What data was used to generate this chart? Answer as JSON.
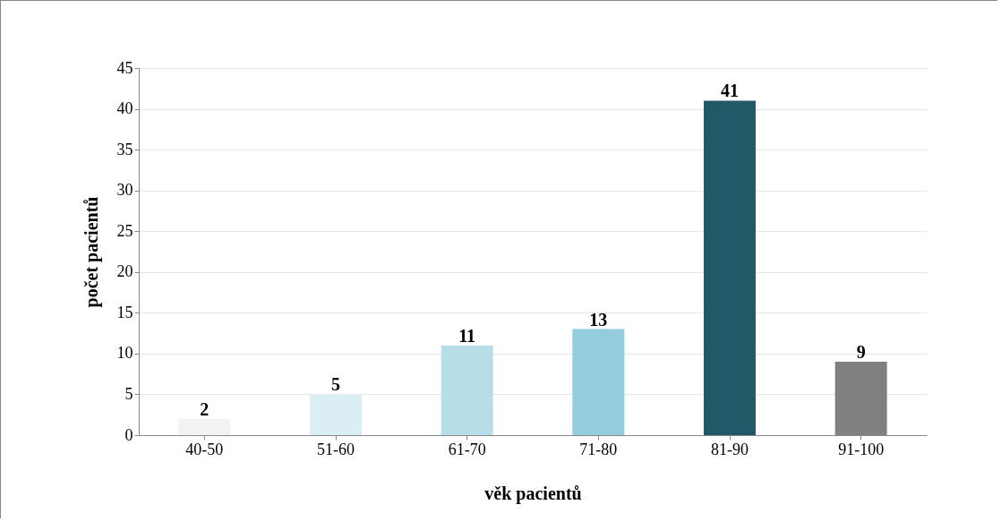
{
  "chart_data": {
    "type": "bar",
    "xlabel": "věk pacientů",
    "ylabel": "počet pacientů",
    "categories": [
      "40-50",
      "51-60",
      "61-70",
      "71-80",
      "81-90",
      "91-100"
    ],
    "values": [
      2,
      5,
      11,
      13,
      41,
      9
    ],
    "colors": [
      "#f2f2f2",
      "#dbeef4",
      "#b7dee8",
      "#93cddd",
      "#215968",
      "#808080"
    ],
    "ylim": [
      0,
      45
    ],
    "yticks": [
      0,
      5,
      10,
      15,
      20,
      25,
      30,
      35,
      40,
      45
    ],
    "grid": "y",
    "data_labels": true,
    "legend": false
  }
}
